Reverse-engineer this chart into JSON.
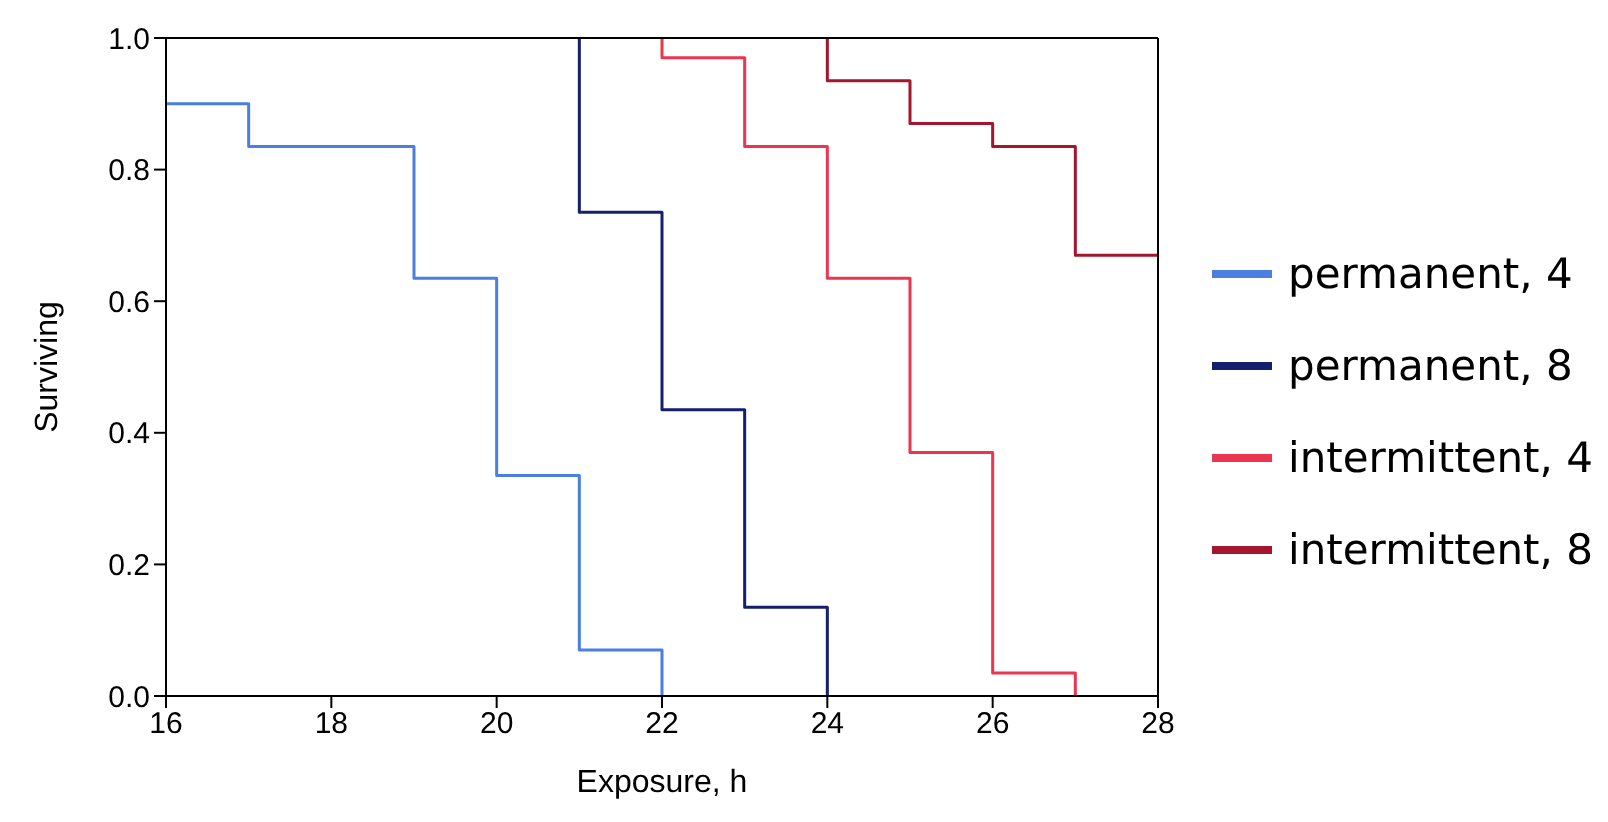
{
  "chart_data": {
    "type": "step",
    "xlabel": "Exposure, h",
    "ylabel": "Surviving",
    "xlim": [
      16,
      28
    ],
    "xticks": [
      16,
      18,
      20,
      22,
      24,
      26,
      28
    ],
    "ylim": [
      0,
      1
    ],
    "yticks": [
      {
        "value": 0,
        "label": "0.0"
      },
      {
        "value": 0.2,
        "label": "0.2"
      },
      {
        "value": 0.4,
        "label": "0.4"
      },
      {
        "value": 0.6,
        "label": "0.6"
      },
      {
        "value": 0.8,
        "label": "0.8"
      },
      {
        "value": 1,
        "label": "1.0"
      }
    ],
    "legend": "right",
    "marker": "none",
    "line_style": "solid",
    "series": [
      {
        "name": "permanent, 4",
        "color": "#4a7fe0",
        "x": [
          16,
          17,
          19,
          20,
          21,
          22
        ],
        "values": [
          0.9,
          0.835,
          0.635,
          0.335,
          0.07,
          0
        ]
      },
      {
        "name": "permanent, 8",
        "color": "#14206e",
        "x": [
          21,
          21,
          22,
          23,
          24
        ],
        "values": [
          1,
          0.735,
          0.435,
          0.135,
          0
        ]
      },
      {
        "name": "intermittent, 4",
        "color": "#ec3550",
        "x": [
          22,
          22,
          23,
          24,
          25,
          26,
          27
        ],
        "values": [
          1,
          0.97,
          0.835,
          0.635,
          0.37,
          0.035,
          0
        ]
      },
      {
        "name": "intermittent, 8",
        "color": "#a3162b",
        "x": [
          24,
          24,
          25,
          26,
          27,
          28
        ],
        "values": [
          1,
          0.935,
          0.87,
          0.835,
          0.67,
          0.67
        ]
      }
    ]
  }
}
